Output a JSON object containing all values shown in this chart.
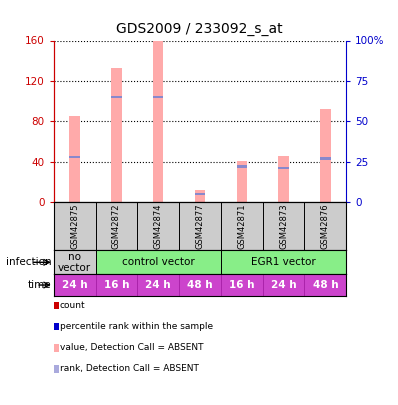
{
  "title": "GDS2009 / 233092_s_at",
  "samples": [
    "GSM42875",
    "GSM42872",
    "GSM42874",
    "GSM42877",
    "GSM42871",
    "GSM42873",
    "GSM42876"
  ],
  "bar_values_pink": [
    85,
    133,
    160,
    12,
    41,
    46,
    92
  ],
  "bar_values_blue_rank": [
    28,
    65,
    65,
    5,
    22,
    21,
    27
  ],
  "ylim_left": [
    0,
    160
  ],
  "ylim_right": [
    0,
    100
  ],
  "yticks_left": [
    0,
    40,
    80,
    120,
    160
  ],
  "yticks_right": [
    0,
    25,
    50,
    75,
    100
  ],
  "ytick_labels_right": [
    "0",
    "25",
    "50",
    "75",
    "100%"
  ],
  "infection_labels": [
    {
      "text": "no\nvector",
      "span": [
        0,
        1
      ],
      "color": "#cccccc"
    },
    {
      "text": "control vector",
      "span": [
        1,
        4
      ],
      "color": "#88ee88"
    },
    {
      "text": "EGR1 vector",
      "span": [
        4,
        7
      ],
      "color": "#88ee88"
    }
  ],
  "time_labels": [
    "24 h",
    "16 h",
    "24 h",
    "48 h",
    "16 h",
    "24 h",
    "48 h"
  ],
  "time_color": "#cc44cc",
  "sample_bg_color": "#cccccc",
  "bar_color_pink": "#ffaaaa",
  "bar_color_blue": "#8888cc",
  "left_axis_color": "#cc0000",
  "right_axis_color": "#0000cc",
  "legend_items": [
    {
      "color": "#cc0000",
      "label": "count"
    },
    {
      "color": "#0000cc",
      "label": "percentile rank within the sample"
    },
    {
      "color": "#ffaaaa",
      "label": "value, Detection Call = ABSENT"
    },
    {
      "color": "#aaaadd",
      "label": "rank, Detection Call = ABSENT"
    }
  ],
  "bg_color": "#ffffff",
  "bar_width": 0.25
}
